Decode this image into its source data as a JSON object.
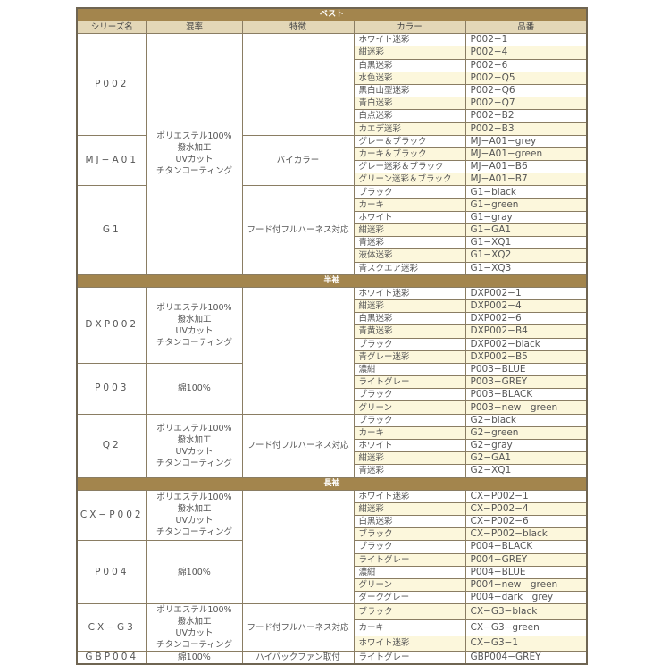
{
  "headers": [
    "シリーズ名",
    "混率",
    "特徴",
    "カラー",
    "品番"
  ],
  "sections": [
    {
      "title": "ベスト",
      "groups": [
        {
          "series": "P002",
          "mix": [
            "ポリエステル100%",
            "撥水加工",
            "UVカット",
            "チタンコーティング"
          ],
          "mix_span": 19,
          "feature": "",
          "feature_span": 8,
          "items": [
            [
              "ホワイト迷彩",
              "P002−1"
            ],
            [
              "紺迷彩",
              "P002−4"
            ],
            [
              "白黒迷彩",
              "P002−6"
            ],
            [
              "水色迷彩",
              "P002−Q5"
            ],
            [
              "黒白山型迷彩",
              "P002−Q6"
            ],
            [
              "青白迷彩",
              "P002−Q7"
            ],
            [
              "白点迷彩",
              "P002−B2"
            ],
            [
              "カエデ迷彩",
              "P002−B3"
            ]
          ]
        },
        {
          "series": "MJ−A01",
          "feature": "バイカラー",
          "feature_span": 4,
          "items": [
            [
              "グレー＆ブラック",
              "MJ−A01−grey"
            ],
            [
              "カーキ＆ブラック",
              "MJ−A01−green"
            ],
            [
              "グレー迷彩＆ブラック",
              "MJ−A01−B6"
            ],
            [
              "グリーン迷彩＆ブラック",
              "MJ−A01−B7"
            ]
          ]
        },
        {
          "series": "G1",
          "feature": "フード付フルハーネス対応",
          "feature_span": 7,
          "items": [
            [
              "ブラック",
              "G1−black"
            ],
            [
              "カーキ",
              "G1−green"
            ],
            [
              "ホワイト",
              "G1−gray"
            ],
            [
              "紺迷彩",
              "G1−GA1"
            ],
            [
              "青迷彩",
              "G1−XQ1"
            ],
            [
              "液体迷彩",
              "G1−XQ2"
            ],
            [
              "青スクエア迷彩",
              "G1−XQ3"
            ]
          ]
        }
      ]
    },
    {
      "title": "半袖",
      "groups": [
        {
          "series": "DXP002",
          "mix": [
            "ポリエステル100%",
            "撥水加工",
            "UVカット",
            "チタンコーティング"
          ],
          "mix_span": 6,
          "feature": "",
          "feature_span": 10,
          "items": [
            [
              "ホワイト迷彩",
              "DXP002−1"
            ],
            [
              "紺迷彩",
              "DXP002−4"
            ],
            [
              "白黒迷彩",
              "DXP002−6"
            ],
            [
              "青黄迷彩",
              "DXP002−B4"
            ],
            [
              "ブラック",
              "DXP002−black"
            ],
            [
              "青グレー迷彩",
              "DXP002−B5"
            ]
          ]
        },
        {
          "series": "P003",
          "mix": [
            "綿100%"
          ],
          "mix_span": 4,
          "items": [
            [
              "濃紺",
              "P003−BLUE"
            ],
            [
              "ライトグレー",
              "P003−GREY"
            ],
            [
              "ブラック",
              "P003−BLACK"
            ],
            [
              "グリーン",
              "P003−new　green"
            ]
          ]
        },
        {
          "series": "Q2",
          "mix": [
            "ポリエステル100%",
            "撥水加工",
            "UVカット",
            "チタンコーティング"
          ],
          "mix_span": 5,
          "feature": "フード付フルハーネス対応",
          "feature_span": 5,
          "items": [
            [
              "ブラック",
              "G2−black"
            ],
            [
              "カーキ",
              "G2−green"
            ],
            [
              "ホワイト",
              "G2−gray"
            ],
            [
              "紺迷彩",
              "G2−GA1"
            ],
            [
              "青迷彩",
              "G2−XQ1"
            ]
          ]
        }
      ]
    },
    {
      "title": "長袖",
      "groups": [
        {
          "series": "CX−P002",
          "mix": [
            "ポリエステル100%",
            "撥水加工",
            "UVカット",
            "チタンコーティング"
          ],
          "mix_span": 4,
          "feature": "",
          "feature_span": 9,
          "items": [
            [
              "ホワイト迷彩",
              "CX−P002−1"
            ],
            [
              "紺迷彩",
              "CX−P002−4"
            ],
            [
              "白黒迷彩",
              "CX−P002−6"
            ],
            [
              "ブラック",
              "CX−P002−black"
            ]
          ]
        },
        {
          "series": "P004",
          "mix": [
            "綿100%"
          ],
          "mix_span": 5,
          "items": [
            [
              "ブラック",
              "P004−BLACK"
            ],
            [
              "ライトグレー",
              "P004−GREY"
            ],
            [
              "濃紺",
              "P004−BLUE"
            ],
            [
              "グリーン",
              "P004−new　green"
            ],
            [
              "ダークグレー",
              "P004−dark　grey"
            ]
          ]
        },
        {
          "series": "CX−G3",
          "mix": [
            "ポリエステル100%",
            "撥水加工",
            "UVカット",
            "チタンコーティング"
          ],
          "mix_span": 3,
          "feature": "フード付フルハーネス対応",
          "feature_span": 3,
          "items": [
            [
              "ブラック",
              "CX−G3−black"
            ],
            [
              "カーキ",
              "CX−G3−green"
            ],
            [
              "ホワイト迷彩",
              "CX−G3−1"
            ]
          ]
        },
        {
          "series": "GBP004",
          "mix": [
            "綿100%"
          ],
          "mix_span": 1,
          "feature": "ハイバックファン取付",
          "feature_span": 1,
          "items": [
            [
              "ライトグレー",
              "GBP004−GREY"
            ]
          ]
        }
      ]
    }
  ]
}
